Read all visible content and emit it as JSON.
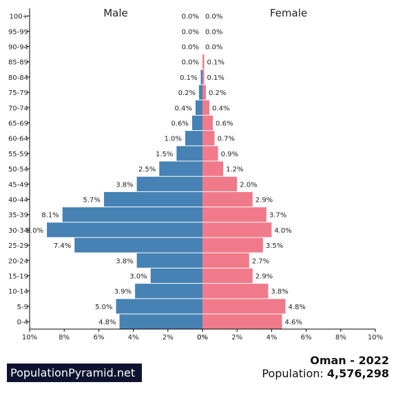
{
  "brand": "PopulationPyramid.net",
  "country_title": "Oman - 2022",
  "population_label": "Population:",
  "population_value": "4,576,298",
  "colors": {
    "male": "#4682b4",
    "female": "#f07a8a"
  },
  "chart_data": {
    "type": "bar",
    "orientation": "horizontal-pyramid",
    "categories": [
      "100+",
      "95-99",
      "90-94",
      "85-89",
      "80-84",
      "75-79",
      "70-74",
      "65-69",
      "60-64",
      "55-59",
      "50-54",
      "45-49",
      "40-44",
      "35-39",
      "30-34",
      "25-29",
      "20-24",
      "15-19",
      "10-14",
      "5-9",
      "0-4"
    ],
    "series": [
      {
        "name": "Male",
        "values": [
          0.0,
          0.0,
          0.0,
          0.0,
          0.1,
          0.2,
          0.4,
          0.6,
          1.0,
          1.5,
          2.5,
          3.8,
          5.7,
          8.1,
          9.0,
          7.4,
          3.8,
          3.0,
          3.9,
          5.0,
          4.8
        ]
      },
      {
        "name": "Female",
        "values": [
          0.0,
          0.0,
          0.0,
          0.1,
          0.1,
          0.2,
          0.4,
          0.6,
          0.7,
          0.9,
          1.2,
          2.0,
          2.9,
          3.7,
          4.0,
          3.5,
          2.7,
          2.9,
          3.8,
          4.8,
          4.6
        ]
      }
    ],
    "xticks_left": [
      "10%",
      "8%",
      "6%",
      "4%",
      "2%",
      "0%"
    ],
    "xticks_right": [
      "0%",
      "2%",
      "4%",
      "6%",
      "8%",
      "10%"
    ],
    "xlim": [
      0,
      10
    ],
    "unit": "%"
  }
}
